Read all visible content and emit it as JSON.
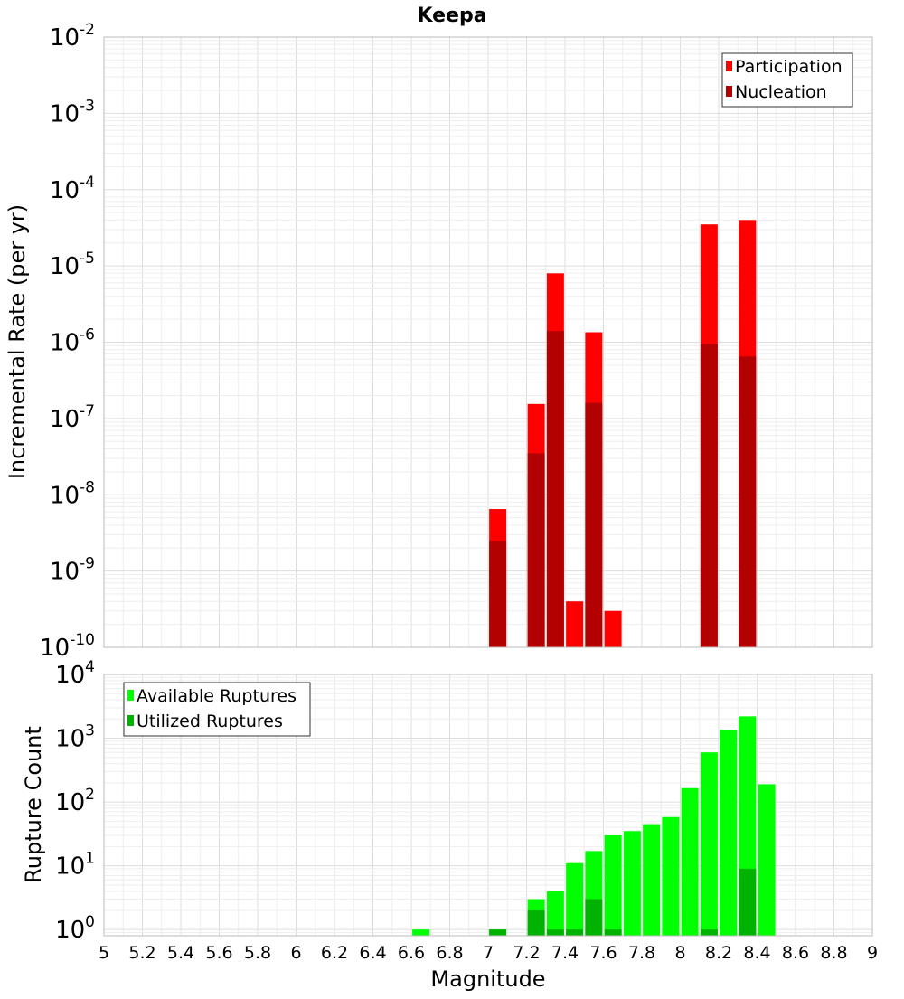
{
  "title": "Keepa",
  "colors": {
    "participation": "#ff0000",
    "nucleation": "#b30000",
    "available": "#00ff00",
    "utilized": "#00b300",
    "grid": "#dddddd",
    "border": "#bbbbbb"
  },
  "chart_data": [
    {
      "type": "bar",
      "subplot": "top",
      "xlabel": "Magnitude",
      "ylabel": "Incremental Rate (per yr)",
      "xlim": [
        5,
        9
      ],
      "ylim": [
        1e-10,
        0.01
      ],
      "yscale": "log",
      "grid": true,
      "legend_placement": "top-right",
      "y_ticks": [
        {
          "base": "10",
          "exp": "-10"
        },
        {
          "base": "10",
          "exp": "-9"
        },
        {
          "base": "10",
          "exp": "-8"
        },
        {
          "base": "10",
          "exp": "-7"
        },
        {
          "base": "10",
          "exp": "-6"
        },
        {
          "base": "10",
          "exp": "-5"
        },
        {
          "base": "10",
          "exp": "-4"
        },
        {
          "base": "10",
          "exp": "-3"
        },
        {
          "base": "10",
          "exp": "-2"
        }
      ],
      "x": [
        7.05,
        7.25,
        7.35,
        7.45,
        7.55,
        7.65,
        8.15,
        8.35
      ],
      "series": [
        {
          "name": "Participation",
          "color": "#ff0000",
          "values": [
            6.5e-09,
            1.55e-07,
            8e-06,
            4e-10,
            1.35e-06,
            3e-10,
            3.5e-05,
            4e-05
          ]
        },
        {
          "name": "Nucleation",
          "color": "#b30000",
          "values": [
            2.5e-09,
            3.5e-08,
            1.4e-06,
            1e-10,
            1.6e-07,
            1e-10,
            9.5e-07,
            6.5e-07
          ]
        }
      ]
    },
    {
      "type": "bar",
      "subplot": "bottom",
      "xlabel": "Magnitude",
      "ylabel": "Rupture Count",
      "xlim": [
        5,
        9
      ],
      "ylim": [
        0.8,
        10000
      ],
      "yscale": "log",
      "grid": true,
      "legend_placement": "top-left",
      "y_ticks": [
        {
          "base": "10",
          "exp": "0"
        },
        {
          "base": "10",
          "exp": "1"
        },
        {
          "base": "10",
          "exp": "2"
        },
        {
          "base": "10",
          "exp": "3"
        },
        {
          "base": "10",
          "exp": "4"
        }
      ],
      "x": [
        6.65,
        7.05,
        7.25,
        7.35,
        7.45,
        7.55,
        7.65,
        7.75,
        7.85,
        7.95,
        8.05,
        8.15,
        8.25,
        8.35,
        8.45
      ],
      "series": [
        {
          "name": "Available Ruptures",
          "color": "#00ff00",
          "values": [
            1,
            1,
            3,
            4,
            11,
            17,
            30,
            35,
            45,
            58,
            165,
            600,
            1350,
            2200,
            190
          ]
        },
        {
          "name": "Utilized Ruptures",
          "color": "#00b300",
          "values": [
            0,
            1,
            2,
            1,
            1,
            3,
            1,
            0,
            0,
            0,
            0,
            1,
            0,
            9,
            0
          ]
        }
      ]
    }
  ],
  "x_ticks": [
    "5",
    "5.2",
    "5.4",
    "5.6",
    "5.8",
    "6",
    "6.2",
    "6.4",
    "6.6",
    "6.8",
    "7",
    "7.2",
    "7.4",
    "7.6",
    "7.8",
    "8",
    "8.2",
    "8.4",
    "8.6",
    "8.8",
    "9"
  ]
}
